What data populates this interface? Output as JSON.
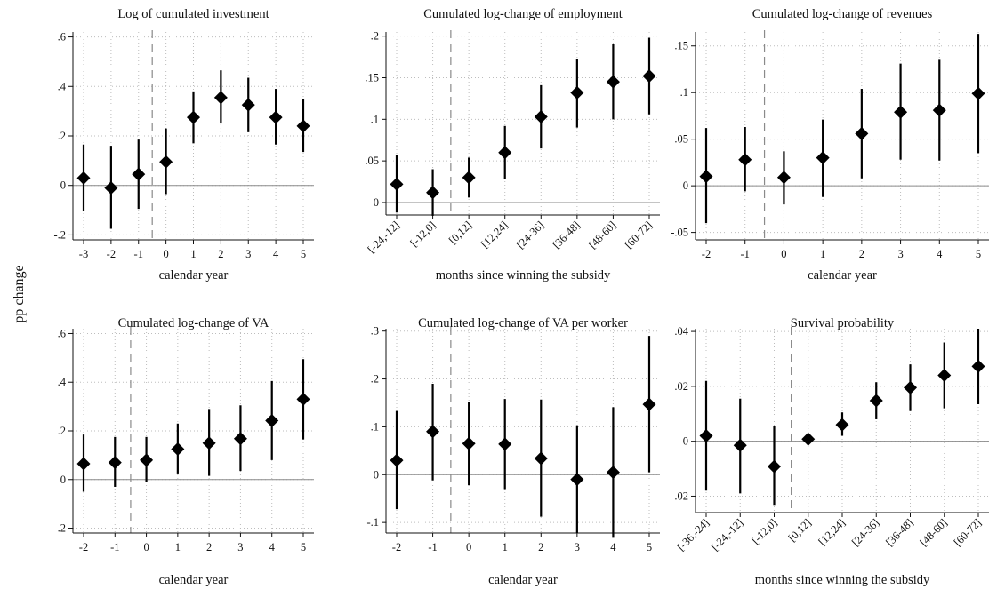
{
  "figure": {
    "ylabel": "pp change"
  },
  "chart_data": [
    {
      "type": "scatter",
      "title": "Log of cumulated investment",
      "xlabel": "calendar year",
      "categories": [
        "-3",
        "-2",
        "-1",
        "0",
        "1",
        "2",
        "3",
        "4",
        "5"
      ],
      "values": [
        0.03,
        -0.01,
        0.045,
        0.095,
        0.275,
        0.355,
        0.325,
        0.275,
        0.24
      ],
      "ci_low": [
        -0.105,
        -0.175,
        -0.095,
        -0.035,
        0.17,
        0.25,
        0.215,
        0.165,
        0.135
      ],
      "ci_high": [
        0.165,
        0.16,
        0.185,
        0.23,
        0.38,
        0.465,
        0.435,
        0.39,
        0.35
      ],
      "yticks": [
        -0.2,
        0,
        0.2,
        0.4,
        0.6
      ],
      "ytick_labels": [
        "-.2",
        "0",
        ".2",
        ".4",
        ".6"
      ],
      "ylim": [
        -0.22,
        0.62
      ],
      "event_line_after": "-1",
      "rotate_xticks": false
    },
    {
      "type": "scatter",
      "title": "Cumulated log-change of employment",
      "xlabel": "months since winning the subsidy",
      "categories": [
        "[-24,-12]",
        "[-12,0]",
        "[0,12]",
        "[12,24]",
        "[24-36]",
        "[36-48]",
        "[48-60]",
        "[60-72]"
      ],
      "values": [
        0.022,
        0.012,
        0.03,
        0.06,
        0.103,
        0.132,
        0.145,
        0.152
      ],
      "ci_low": [
        -0.012,
        -0.016,
        0.006,
        0.028,
        0.065,
        0.09,
        0.1,
        0.106
      ],
      "ci_high": [
        0.057,
        0.04,
        0.054,
        0.092,
        0.141,
        0.173,
        0.19,
        0.198
      ],
      "yticks": [
        0,
        0.05,
        0.1,
        0.15,
        0.2
      ],
      "ytick_labels": [
        "0",
        ".05",
        ".1",
        ".15",
        ".2"
      ],
      "ylim": [
        -0.015,
        0.205
      ],
      "event_line_after": "[-12,0]",
      "rotate_xticks": true
    },
    {
      "type": "scatter",
      "title": "Cumulated log-change of revenues",
      "xlabel": "calendar year",
      "categories": [
        "-2",
        "-1",
        "0",
        "1",
        "2",
        "3",
        "4",
        "5"
      ],
      "values": [
        0.01,
        0.028,
        0.009,
        0.03,
        0.056,
        0.079,
        0.081,
        0.099
      ],
      "ci_low": [
        -0.04,
        -0.006,
        -0.02,
        -0.012,
        0.008,
        0.028,
        0.027,
        0.035
      ],
      "ci_high": [
        0.062,
        0.063,
        0.037,
        0.071,
        0.104,
        0.131,
        0.136,
        0.163
      ],
      "yticks": [
        -0.05,
        0,
        0.05,
        0.1,
        0.15
      ],
      "ytick_labels": [
        "-.05",
        "0",
        ".05",
        ".1",
        ".15"
      ],
      "ylim": [
        -0.058,
        0.165
      ],
      "event_line_after": "-1",
      "rotate_xticks": false
    },
    {
      "type": "scatter",
      "title": "Cumulated log-change of VA",
      "xlabel": "calendar year",
      "categories": [
        "-2",
        "-1",
        "0",
        "1",
        "2",
        "3",
        "4",
        "5"
      ],
      "values": [
        0.065,
        0.07,
        0.08,
        0.125,
        0.15,
        0.168,
        0.242,
        0.33
      ],
      "ci_low": [
        -0.05,
        -0.03,
        -0.01,
        0.025,
        0.015,
        0.035,
        0.08,
        0.165
      ],
      "ci_high": [
        0.185,
        0.175,
        0.175,
        0.23,
        0.29,
        0.305,
        0.405,
        0.495
      ],
      "yticks": [
        -0.2,
        0,
        0.2,
        0.4,
        0.6
      ],
      "ytick_labels": [
        "-.2",
        "0",
        ".2",
        ".4",
        ".6"
      ],
      "ylim": [
        -0.22,
        0.62
      ],
      "event_line_after": "-1",
      "rotate_xticks": false
    },
    {
      "type": "scatter",
      "title": "Cumulated log-change of VA per worker",
      "xlabel": "calendar year",
      "categories": [
        "-2",
        "-1",
        "0",
        "1",
        "2",
        "3",
        "4",
        "5"
      ],
      "values": [
        0.03,
        0.09,
        0.065,
        0.064,
        0.034,
        -0.01,
        0.005,
        0.147
      ],
      "ci_low": [
        -0.072,
        -0.012,
        -0.022,
        -0.03,
        -0.088,
        -0.122,
        -0.132,
        0.005
      ],
      "ci_high": [
        0.133,
        0.19,
        0.152,
        0.158,
        0.157,
        0.103,
        0.141,
        0.29
      ],
      "yticks": [
        -0.1,
        0,
        0.1,
        0.2,
        0.3
      ],
      "ytick_labels": [
        "-.1",
        "0",
        ".1",
        ".2",
        ".3"
      ],
      "ylim": [
        -0.122,
        0.305
      ],
      "event_line_after": "-1",
      "rotate_xticks": false
    },
    {
      "type": "scatter",
      "title": "Survival probability",
      "xlabel": "months since winning the subsidy",
      "categories": [
        "[-36,-24]",
        "[-24,-12]",
        "[-12,0]",
        "[0,12]",
        "[12,24]",
        "[24-36]",
        "[36-48]",
        "[48-60]",
        "[60-72]"
      ],
      "values": [
        0.002,
        -0.0015,
        -0.0092,
        0.0008,
        0.006,
        0.0148,
        0.0195,
        0.024,
        0.0273
      ],
      "ci_low": [
        -0.018,
        -0.019,
        -0.0235,
        0.0,
        0.002,
        0.008,
        0.011,
        0.012,
        0.0135
      ],
      "ci_high": [
        0.022,
        0.0155,
        0.0055,
        0.0015,
        0.0105,
        0.0215,
        0.028,
        0.036,
        0.041
      ],
      "yticks": [
        -0.02,
        0,
        0.02,
        0.04
      ],
      "ytick_labels": [
        "-.02",
        "0",
        ".02",
        ".04"
      ],
      "ylim": [
        -0.026,
        0.041
      ],
      "event_line_after": "[-12,0]",
      "rotate_xticks": true
    }
  ]
}
